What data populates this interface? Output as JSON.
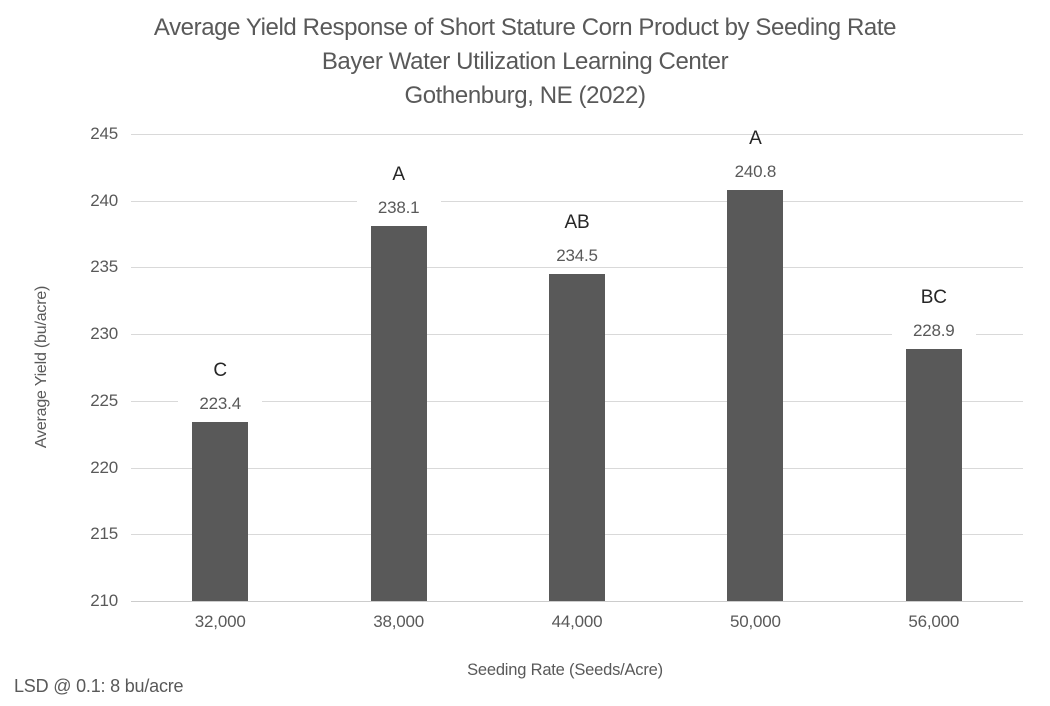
{
  "chart_data": {
    "type": "bar",
    "title": "Average Yield Response of Short Stature Corn Product by Seeding Rate\nBayer Water Utilization Learning Center\nGothenburg, NE (2022)",
    "title_lines": [
      "Average Yield Response of Short Stature Corn Product by Seeding Rate",
      "Bayer Water Utilization Learning Center",
      "Gothenburg, NE (2022)"
    ],
    "categories": [
      "32,000",
      "38,000",
      "44,000",
      "50,000",
      "56,000"
    ],
    "values": [
      223.4,
      238.1,
      234.5,
      240.8,
      228.9
    ],
    "value_labels": [
      "223.4",
      "238.1",
      "234.5",
      "240.8",
      "228.9"
    ],
    "significance_letters": [
      "C",
      "A",
      "AB",
      "A",
      "BC"
    ],
    "xlabel": "Seeding Rate (Seeds/Acre)",
    "ylabel": "Average Yield (bu/acre)",
    "ylim": [
      210,
      245
    ],
    "yticks": [
      210,
      215,
      220,
      225,
      230,
      235,
      240,
      245
    ],
    "grid": true,
    "legend": "none",
    "annotation": "LSD @ 0.1: 8 bu/acre",
    "colors": {
      "bar": "#595959",
      "gridline": "#d9d9d9",
      "axis_line": "#cccccc",
      "tick_text": "#595959",
      "title_text": "#595959",
      "significance_text": "#262626",
      "background": "#ffffff"
    }
  }
}
